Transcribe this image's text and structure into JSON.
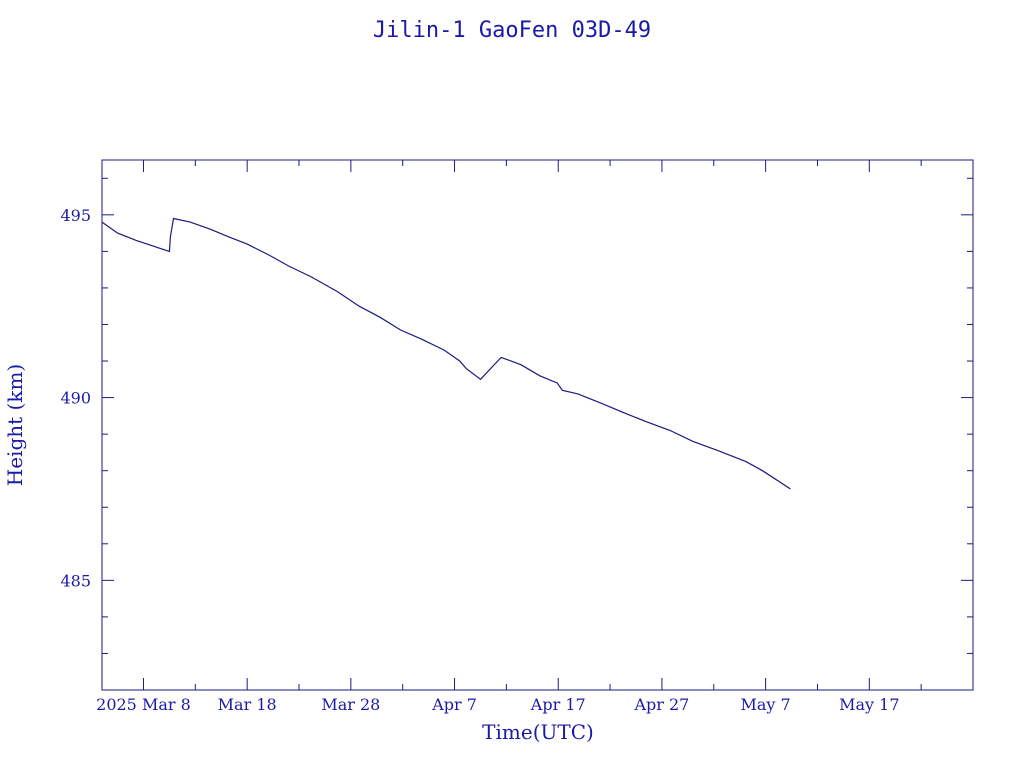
{
  "chart_data": {
    "type": "line",
    "title": "Jilin-1 GaoFen 03D-49",
    "xlabel": "Time(UTC)",
    "ylabel": "Height (km)",
    "xlim": [
      0,
      84
    ],
    "ylim": [
      482,
      496.5
    ],
    "y_ticks": [
      485,
      490,
      495
    ],
    "x_ticks": [
      {
        "x": 4,
        "label": "2025 Mar  8"
      },
      {
        "x": 14,
        "label": "Mar 18"
      },
      {
        "x": 24,
        "label": "Mar 28"
      },
      {
        "x": 34,
        "label": "Apr  7"
      },
      {
        "x": 44,
        "label": "Apr 17"
      },
      {
        "x": 54,
        "label": "Apr 27"
      },
      {
        "x": 64,
        "label": "May  7"
      },
      {
        "x": 74,
        "label": "May 17"
      }
    ],
    "grid": false,
    "color": "#1a1a80",
    "series": [
      {
        "x": [
          0,
          1.5,
          3.3,
          5.4,
          6.5,
          6.6,
          6.9,
          8.5,
          10.5,
          12.2,
          14,
          16.1,
          18,
          20.2,
          22.7,
          24.8,
          26.8,
          28.8,
          30.8,
          33,
          34.5,
          35.1,
          36.5,
          38.5,
          40.4,
          42.2,
          43.9,
          44.4,
          45.9,
          48.1,
          50.2,
          52.4,
          54.8,
          57,
          59.4,
          62.1,
          63.7,
          66.4
        ],
        "y": [
          494.8,
          494.5,
          494.3,
          494.1,
          494.0,
          494.4,
          494.9,
          494.8,
          494.6,
          494.4,
          494.2,
          493.9,
          493.6,
          493.3,
          492.9,
          492.5,
          492.2,
          491.85,
          491.6,
          491.3,
          491.0,
          490.8,
          490.5,
          491.1,
          490.9,
          490.6,
          490.4,
          490.2,
          490.1,
          489.85,
          489.6,
          489.35,
          489.1,
          488.8,
          488.55,
          488.25,
          488.0,
          487.5
        ]
      }
    ]
  }
}
